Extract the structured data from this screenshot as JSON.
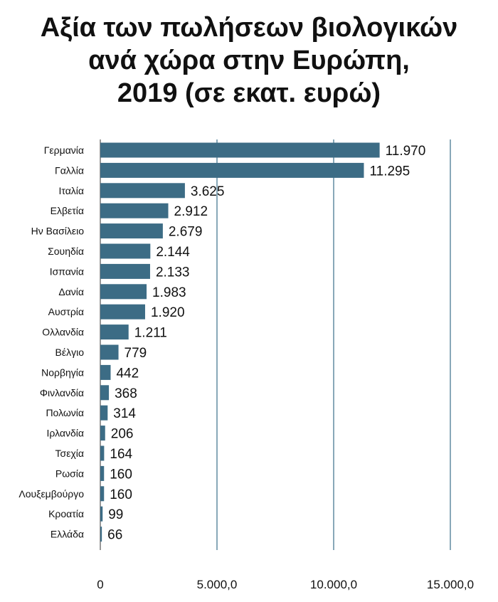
{
  "title_lines": [
    "Αξία των πωλήσεων βιολογικών",
    "ανά χώρα στην Ευρώπη,",
    "2019 (σε εκατ. ευρώ)"
  ],
  "colors": {
    "bar": "#3c6c85",
    "grid": "#3a6e8a",
    "axis": "#555555"
  },
  "chart_data": {
    "type": "bar",
    "orientation": "horizontal",
    "title": "Αξία των πωλήσεων βιολογικών ανά χώρα στην Ευρώπη, 2019 (σε εκατ. ευρώ)",
    "categories": [
      "Γερμανία",
      "Γαλλία",
      "Ιταλία",
      "Ελβετία",
      "Ην Βασίλειο",
      "Σουηδία",
      "Ισπανία",
      "Δανία",
      "Αυστρία",
      "Ολλανδία",
      "Βέλγιο",
      "Νορβηγία",
      "Φινλανδία",
      "Πολωνία",
      "Ιρλανδία",
      "Τσεχία",
      "Ρωσία",
      "Λουξεμβούργο",
      "Κροατία",
      "Ελλάδα"
    ],
    "values": [
      11970,
      11295,
      3625,
      2912,
      2679,
      2144,
      2133,
      1983,
      1920,
      1211,
      779,
      442,
      368,
      314,
      206,
      164,
      160,
      160,
      99,
      66
    ],
    "value_labels": [
      "11.970",
      "11.295",
      "3.625",
      "2.912",
      "2.679",
      "2.144",
      "2.133",
      "1.983",
      "1.920",
      "1.211",
      "779",
      "442",
      "368",
      "314",
      "206",
      "164",
      "160",
      "160",
      "99",
      "66"
    ],
    "xlim": [
      0,
      15000
    ],
    "xticks": [
      0,
      5000,
      10000,
      15000
    ],
    "xtick_labels": [
      "0",
      "5.000,0",
      "10.000,0",
      "15.000,0"
    ],
    "grid": "vertical"
  }
}
